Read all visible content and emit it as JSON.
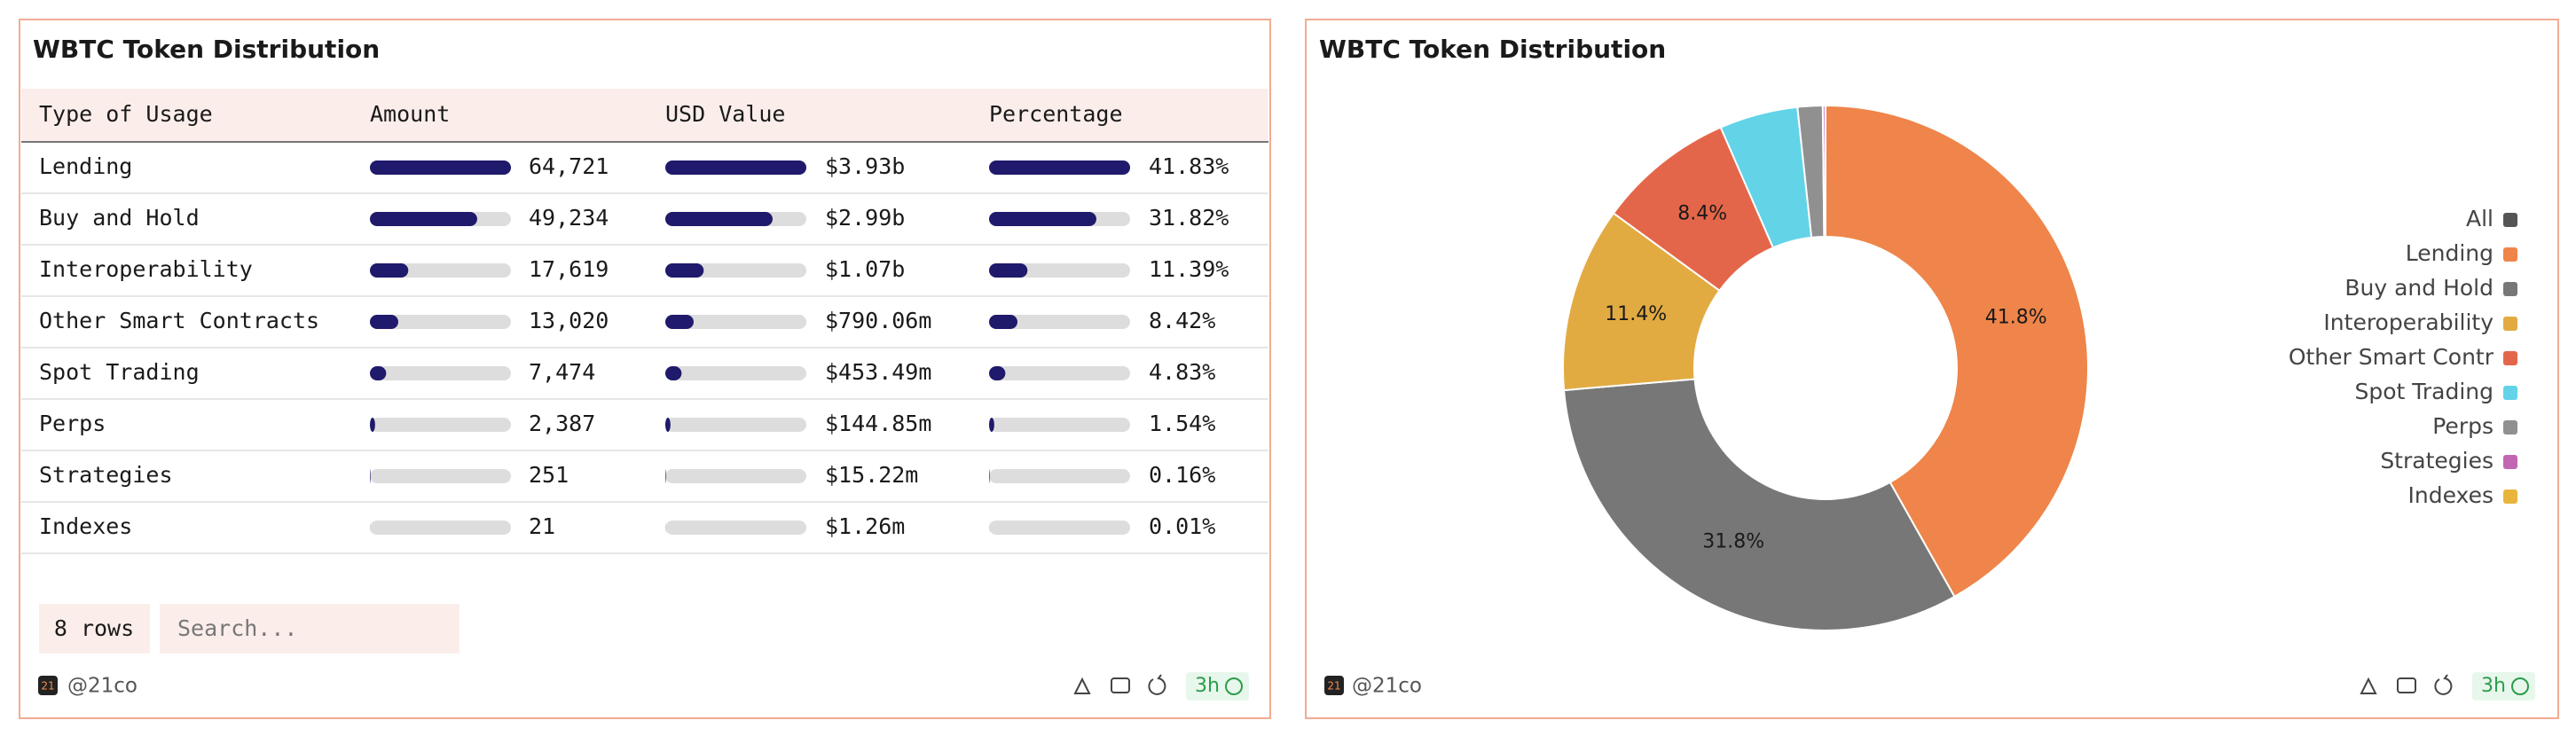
{
  "table_panel": {
    "title": "WBTC Token Distribution",
    "columns": [
      "Type of Usage",
      "Amount",
      "USD Value",
      "Percentage"
    ],
    "rows": [
      {
        "type": "Lending",
        "amount": {
          "value": 64721,
          "label": "64,721"
        },
        "usd": {
          "value": 3930000000,
          "label": "$3.93b"
        },
        "percentage": {
          "value": 41.83,
          "label": "41.83%"
        }
      },
      {
        "type": "Buy and Hold",
        "amount": {
          "value": 49234,
          "label": "49,234"
        },
        "usd": {
          "value": 2990000000,
          "label": "$2.99b"
        },
        "percentage": {
          "value": 31.82,
          "label": "31.82%"
        }
      },
      {
        "type": "Interoperability",
        "amount": {
          "value": 17619,
          "label": "17,619"
        },
        "usd": {
          "value": 1070000000,
          "label": "$1.07b"
        },
        "percentage": {
          "value": 11.39,
          "label": "11.39%"
        }
      },
      {
        "type": "Other Smart Contracts",
        "amount": {
          "value": 13020,
          "label": "13,020"
        },
        "usd": {
          "value": 790060000,
          "label": "$790.06m"
        },
        "percentage": {
          "value": 8.42,
          "label": "8.42%"
        }
      },
      {
        "type": "Spot Trading",
        "amount": {
          "value": 7474,
          "label": "7,474"
        },
        "usd": {
          "value": 453490000,
          "label": "$453.49m"
        },
        "percentage": {
          "value": 4.83,
          "label": "4.83%"
        }
      },
      {
        "type": "Perps",
        "amount": {
          "value": 2387,
          "label": "2,387"
        },
        "usd": {
          "value": 144850000,
          "label": "$144.85m"
        },
        "percentage": {
          "value": 1.54,
          "label": "1.54%"
        }
      },
      {
        "type": "Strategies",
        "amount": {
          "value": 251,
          "label": "251"
        },
        "usd": {
          "value": 15220000,
          "label": "$15.22m"
        },
        "percentage": {
          "value": 0.16,
          "label": "0.16%"
        }
      },
      {
        "type": "Indexes",
        "amount": {
          "value": 21,
          "label": "21"
        },
        "usd": {
          "value": 1260000,
          "label": "$1.26m"
        },
        "percentage": {
          "value": 0.01,
          "label": "0.01%"
        }
      }
    ],
    "row_count": "8 rows",
    "search_placeholder": "Search...",
    "logo": "21",
    "author": "@21co",
    "refresh": "3h"
  },
  "chart_data": {
    "type": "pie",
    "title": "WBTC Token Distribution",
    "categories": [
      "Lending",
      "Buy and Hold",
      "Interoperability",
      "Other Smart Contr",
      "Spot Trading",
      "Perps",
      "Strategies",
      "Indexes"
    ],
    "values": [
      41.83,
      31.82,
      11.39,
      8.42,
      4.83,
      1.54,
      0.16,
      0.01
    ],
    "value_labels": [
      "41.8%",
      "31.8%",
      "11.4%",
      "8.4%",
      null,
      null,
      null,
      null
    ],
    "colors": [
      "#ef854a",
      "#777777",
      "#e2ab42",
      "#e4664a",
      "#63d3e8",
      "#909090",
      "#c266b4",
      "#e8b53c"
    ],
    "legend_all_label": "All",
    "legend_all_color": "#555555",
    "donut": true
  },
  "chart_footer": {
    "logo": "21",
    "author": "@21co",
    "refresh": "3h"
  }
}
